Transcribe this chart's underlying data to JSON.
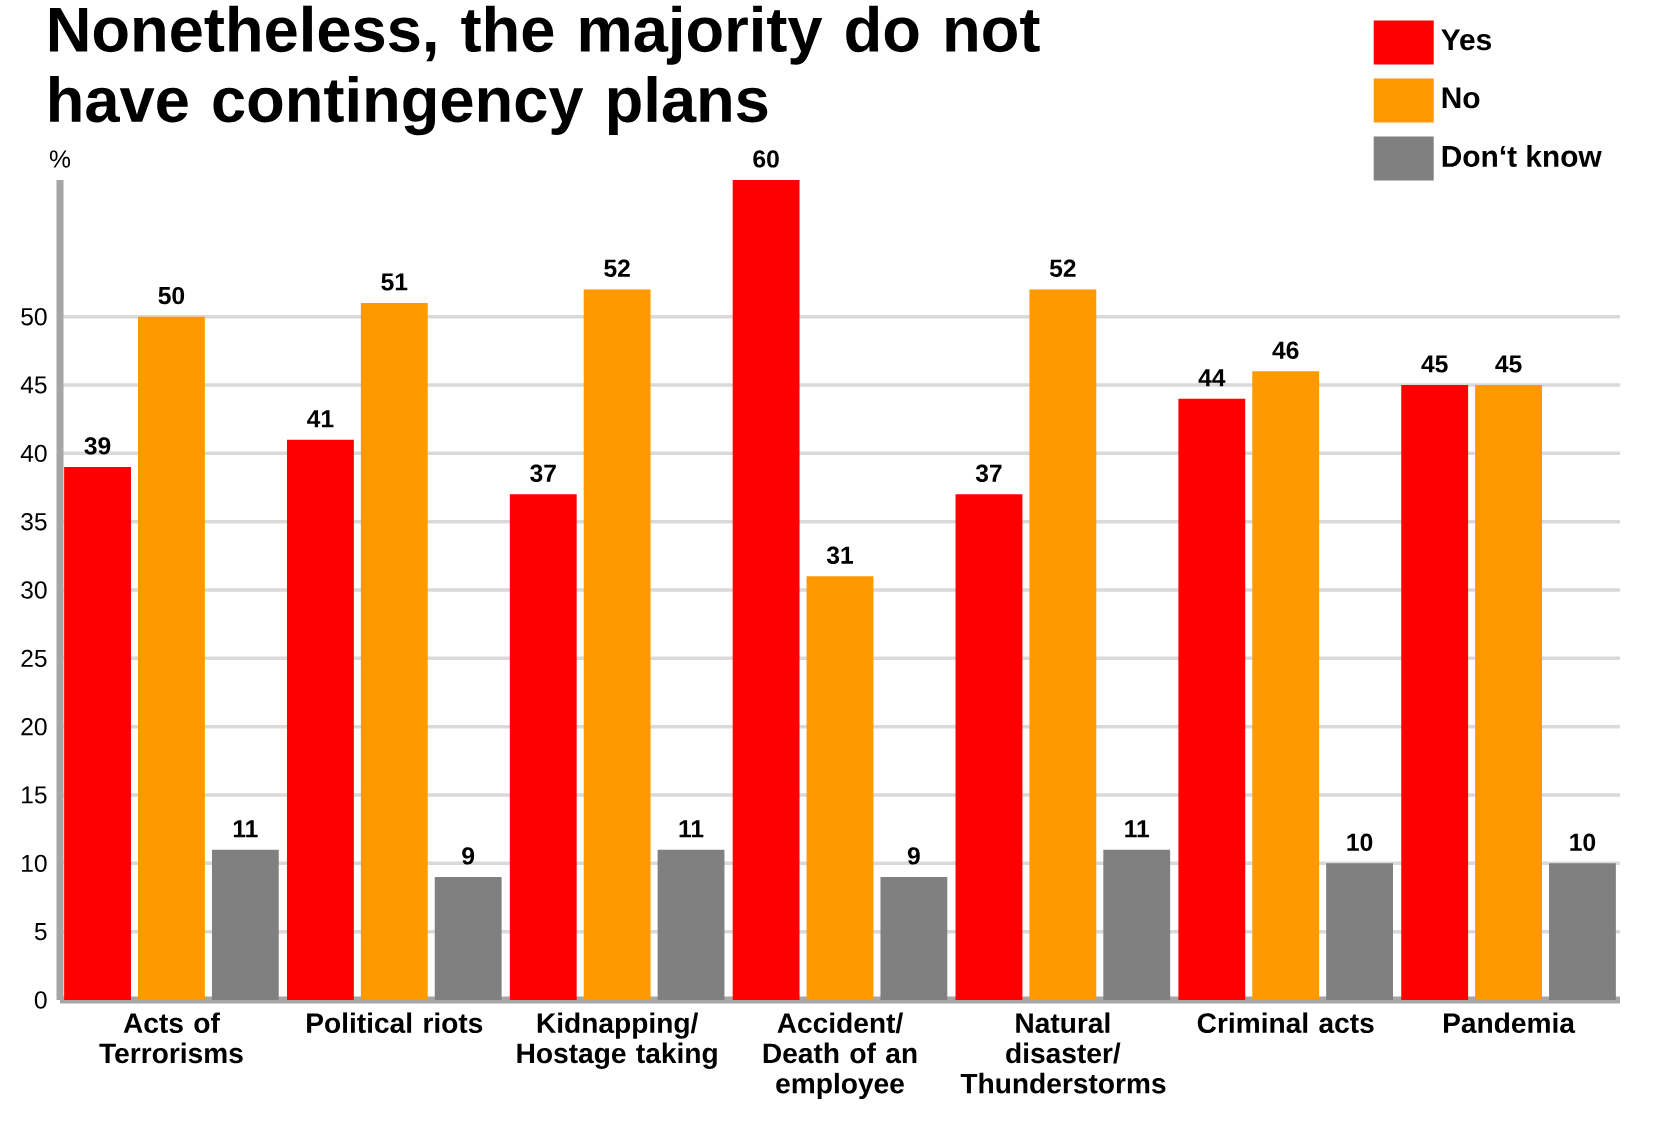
{
  "chart_data": {
    "type": "bar",
    "title": "Nonetheless, the majority do not have contingency plans",
    "ylabel": "%",
    "categories": [
      "Acts of Terrorisms",
      "Political riots",
      "Kidnapping/ Hostage taking",
      "Accident/ Death of an employee",
      "Natural disaster/ Thunderstorms",
      "Criminal acts",
      "Pandemia"
    ],
    "series": [
      {
        "name": "Yes",
        "color": "#ff0000",
        "values": [
          39,
          41,
          37,
          60,
          37,
          44,
          45
        ]
      },
      {
        "name": "No",
        "color": "#ff9900",
        "values": [
          50,
          51,
          52,
          31,
          52,
          46,
          45
        ]
      },
      {
        "name": "Don‘t know",
        "color": "#808080",
        "values": [
          11,
          9,
          11,
          9,
          11,
          10,
          10
        ]
      }
    ],
    "ylim": [
      0,
      60
    ],
    "yticks": [
      0,
      5,
      10,
      15,
      20,
      25,
      30,
      35,
      40,
      45,
      50
    ],
    "grid": "y",
    "legend": "top right",
    "data_labels": true
  }
}
